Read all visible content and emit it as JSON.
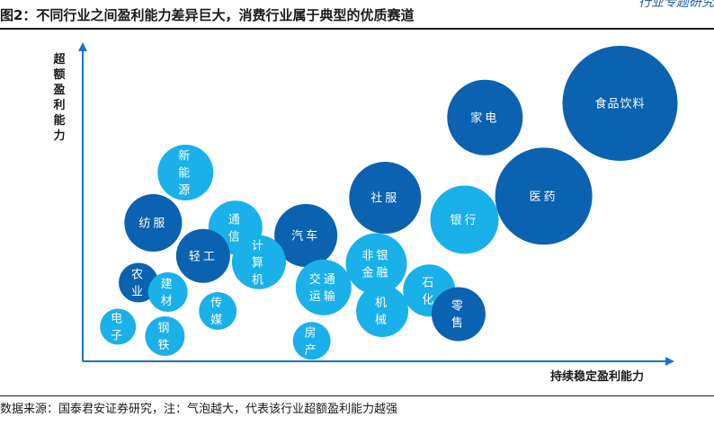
{
  "header": {
    "title": "图2：不同行业之间盈利能力差异巨大，消费行业属于典型的优质赛道",
    "brand": "行业专题研究"
  },
  "footer": {
    "source": "数据来源：国泰君安证券研究，注：气泡越大，代表该行业超额盈利能力越强"
  },
  "colors": {
    "dark": "#0b62b0",
    "light": "#1ab0ea",
    "text_on_bubble": "#ffffff"
  },
  "chart_data": {
    "type": "bubble",
    "xlabel": "持续稳定盈利能力",
    "ylabel": "超额盈利能力",
    "xlim": [
      0,
      100
    ],
    "ylim": [
      0,
      100
    ],
    "grid": false,
    "legend": "none",
    "points": [
      {
        "label": "食品饮料",
        "x": 91.5,
        "y": 82.0,
        "size": 64,
        "color": "dark"
      },
      {
        "label": "家电",
        "x": 68.5,
        "y": 77.5,
        "size": 42,
        "color": "dark"
      },
      {
        "label": "医药",
        "x": 78.5,
        "y": 52.5,
        "size": 54,
        "color": "dark"
      },
      {
        "label": "银行",
        "x": 65.0,
        "y": 45.0,
        "size": 38,
        "color": "light"
      },
      {
        "label": "社服",
        "x": 51.5,
        "y": 52.0,
        "size": 40,
        "color": "dark"
      },
      {
        "label": "汽车",
        "x": 38.0,
        "y": 40.0,
        "size": 35,
        "color": "dark"
      },
      {
        "label": "非银金融",
        "x": 50.0,
        "y": 31.0,
        "size": 34,
        "color": "light"
      },
      {
        "label": "机械",
        "x": 51.0,
        "y": 16.0,
        "size": 29,
        "color": "light"
      },
      {
        "label": "交通运输",
        "x": 41.0,
        "y": 23.5,
        "size": 31,
        "color": "light"
      },
      {
        "label": "石化",
        "x": 59.0,
        "y": 22.5,
        "size": 29,
        "color": "light"
      },
      {
        "label": "零售",
        "x": 64.0,
        "y": 15.0,
        "size": 30,
        "color": "dark"
      },
      {
        "label": "房产",
        "x": 39.0,
        "y": 6.5,
        "size": 21,
        "color": "light"
      },
      {
        "label": "新能源",
        "x": 17.5,
        "y": 60.0,
        "size": 31,
        "color": "light"
      },
      {
        "label": "通信",
        "x": 26.0,
        "y": 42.5,
        "size": 30,
        "color": "light"
      },
      {
        "label": "纺服",
        "x": 12.0,
        "y": 44.0,
        "size": 32,
        "color": "dark"
      },
      {
        "label": "轻工",
        "x": 20.5,
        "y": 33.5,
        "size": 30,
        "color": "dark"
      },
      {
        "label": "计算机",
        "x": 30.0,
        "y": 31.5,
        "size": 30,
        "color": "light"
      },
      {
        "label": "农业",
        "x": 9.5,
        "y": 25.0,
        "size": 22,
        "color": "dark"
      },
      {
        "label": "建材",
        "x": 14.5,
        "y": 22.0,
        "size": 22,
        "color": "light"
      },
      {
        "label": "传媒",
        "x": 23.0,
        "y": 16.0,
        "size": 21,
        "color": "light"
      },
      {
        "label": "电子",
        "x": 6.0,
        "y": 11.0,
        "size": 20,
        "color": "light"
      },
      {
        "label": "钢铁",
        "x": 14.0,
        "y": 8.0,
        "size": 22,
        "color": "light"
      }
    ]
  }
}
